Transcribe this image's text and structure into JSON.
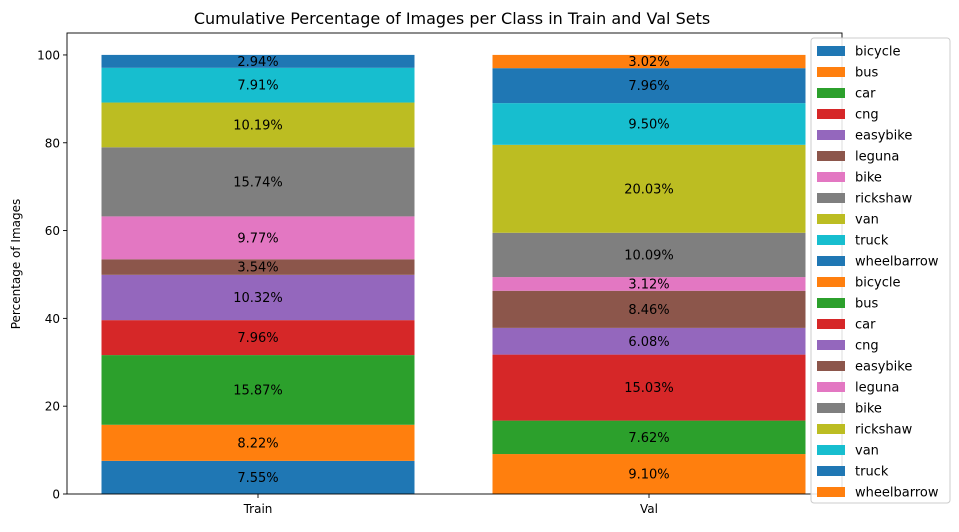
{
  "chart_data": {
    "type": "bar",
    "stacked": true,
    "title": "Cumulative Percentage of Images per Class in Train and Val Sets",
    "xlabel": "",
    "ylabel": "Percentage of Images",
    "ylim": [
      0,
      105
    ],
    "yticks": [
      "0",
      "20",
      "40",
      "60",
      "80",
      "100"
    ],
    "grid": false,
    "legend_position": "right",
    "categories": [
      "Train",
      "Val"
    ],
    "stacks": [
      {
        "category": "Train",
        "segments": [
          {
            "value": 7.55,
            "label": "7.55%",
            "color": "#1f77b4"
          },
          {
            "value": 8.22,
            "label": "8.22%",
            "color": "#ff7f0e"
          },
          {
            "value": 15.87,
            "label": "15.87%",
            "color": "#2ca02c"
          },
          {
            "value": 7.96,
            "label": "7.96%",
            "color": "#d62728"
          },
          {
            "value": 10.32,
            "label": "10.32%",
            "color": "#9467bd"
          },
          {
            "value": 3.54,
            "label": "3.54%",
            "color": "#8c564b"
          },
          {
            "value": 9.77,
            "label": "9.77%",
            "color": "#e377c2"
          },
          {
            "value": 15.74,
            "label": "15.74%",
            "color": "#7f7f7f"
          },
          {
            "value": 10.19,
            "label": "10.19%",
            "color": "#bcbd22"
          },
          {
            "value": 7.91,
            "label": "7.91%",
            "color": "#17becf"
          },
          {
            "value": 2.94,
            "label": "2.94%",
            "color": "#1f77b4"
          }
        ]
      },
      {
        "category": "Val",
        "segments": [
          {
            "value": 9.1,
            "label": "9.10%",
            "color": "#ff7f0e"
          },
          {
            "value": 7.62,
            "label": "7.62%",
            "color": "#2ca02c"
          },
          {
            "value": 15.03,
            "label": "15.03%",
            "color": "#d62728"
          },
          {
            "value": 6.08,
            "label": "6.08%",
            "color": "#9467bd"
          },
          {
            "value": 8.46,
            "label": "8.46%",
            "color": "#8c564b"
          },
          {
            "value": 3.12,
            "label": "3.12%",
            "color": "#e377c2"
          },
          {
            "value": 10.09,
            "label": "10.09%",
            "color": "#7f7f7f"
          },
          {
            "value": 20.03,
            "label": "20.03%",
            "color": "#bcbd22"
          },
          {
            "value": 9.5,
            "label": "9.50%",
            "color": "#17becf"
          },
          {
            "value": 7.96,
            "label": "7.96%",
            "color": "#1f77b4"
          },
          {
            "value": 3.02,
            "label": "3.02%",
            "color": "#ff7f0e"
          }
        ]
      }
    ],
    "legend": [
      {
        "name": "bicycle",
        "color": "#1f77b4"
      },
      {
        "name": "bus",
        "color": "#ff7f0e"
      },
      {
        "name": "car",
        "color": "#2ca02c"
      },
      {
        "name": "cng",
        "color": "#d62728"
      },
      {
        "name": "easybike",
        "color": "#9467bd"
      },
      {
        "name": "leguna",
        "color": "#8c564b"
      },
      {
        "name": "bike",
        "color": "#e377c2"
      },
      {
        "name": "rickshaw",
        "color": "#7f7f7f"
      },
      {
        "name": "van",
        "color": "#bcbd22"
      },
      {
        "name": "truck",
        "color": "#17becf"
      },
      {
        "name": "wheelbarrow",
        "color": "#1f77b4"
      },
      {
        "name": "bicycle",
        "color": "#ff7f0e"
      },
      {
        "name": "bus",
        "color": "#2ca02c"
      },
      {
        "name": "car",
        "color": "#d62728"
      },
      {
        "name": "cng",
        "color": "#9467bd"
      },
      {
        "name": "easybike",
        "color": "#8c564b"
      },
      {
        "name": "leguna",
        "color": "#e377c2"
      },
      {
        "name": "bike",
        "color": "#7f7f7f"
      },
      {
        "name": "rickshaw",
        "color": "#bcbd22"
      },
      {
        "name": "van",
        "color": "#17becf"
      },
      {
        "name": "truck",
        "color": "#1f77b4"
      },
      {
        "name": "wheelbarrow",
        "color": "#ff7f0e"
      }
    ]
  }
}
